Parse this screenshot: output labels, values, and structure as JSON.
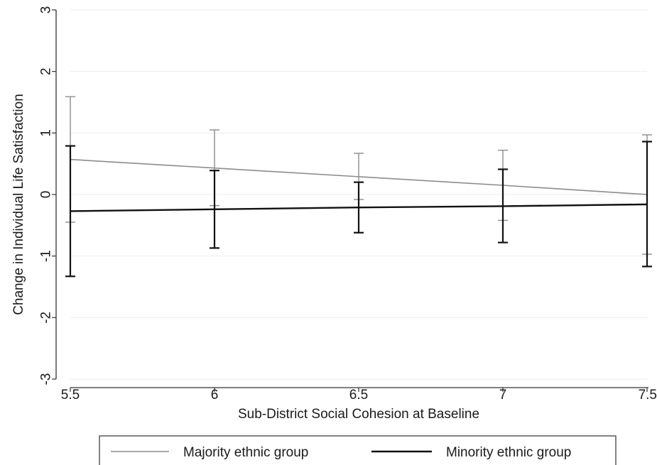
{
  "chart_data": {
    "type": "line",
    "title": "",
    "xlabel": "Sub-District Social Cohesion at Baseline",
    "ylabel": "Change in Individual Life Satisfaction",
    "xlim": [
      5.5,
      7.5
    ],
    "ylim": [
      -3,
      3
    ],
    "xticks": [
      5.5,
      6,
      6.5,
      7,
      7.5
    ],
    "xtick_labels": [
      "5.5",
      "6",
      "6.5",
      "7",
      "7.5"
    ],
    "yticks": [
      -3,
      -2,
      -1,
      0,
      1,
      2,
      3
    ],
    "ytick_labels": [
      "-3",
      "-2",
      "-1",
      "0",
      "1",
      "2",
      "3"
    ],
    "grid": "horizontal",
    "legend_position": "bottom",
    "x": [
      5.5,
      6,
      6.5,
      7,
      7.5
    ],
    "series": [
      {
        "name": "Majority ethnic group",
        "color": "#8c8c8c",
        "values": [
          0.57,
          0.43,
          0.29,
          0.15,
          0.0
        ],
        "ci_low": [
          -0.45,
          -0.18,
          -0.08,
          -0.42,
          -0.97
        ],
        "ci_high": [
          1.59,
          1.05,
          0.67,
          0.72,
          0.97
        ]
      },
      {
        "name": "Minority ethnic group",
        "color": "#111111",
        "values": [
          -0.27,
          -0.24,
          -0.21,
          -0.19,
          -0.16
        ],
        "ci_low": [
          -1.33,
          -0.87,
          -0.62,
          -0.78,
          -1.17
        ],
        "ci_high": [
          0.79,
          0.39,
          0.2,
          0.41,
          0.86
        ]
      }
    ]
  }
}
